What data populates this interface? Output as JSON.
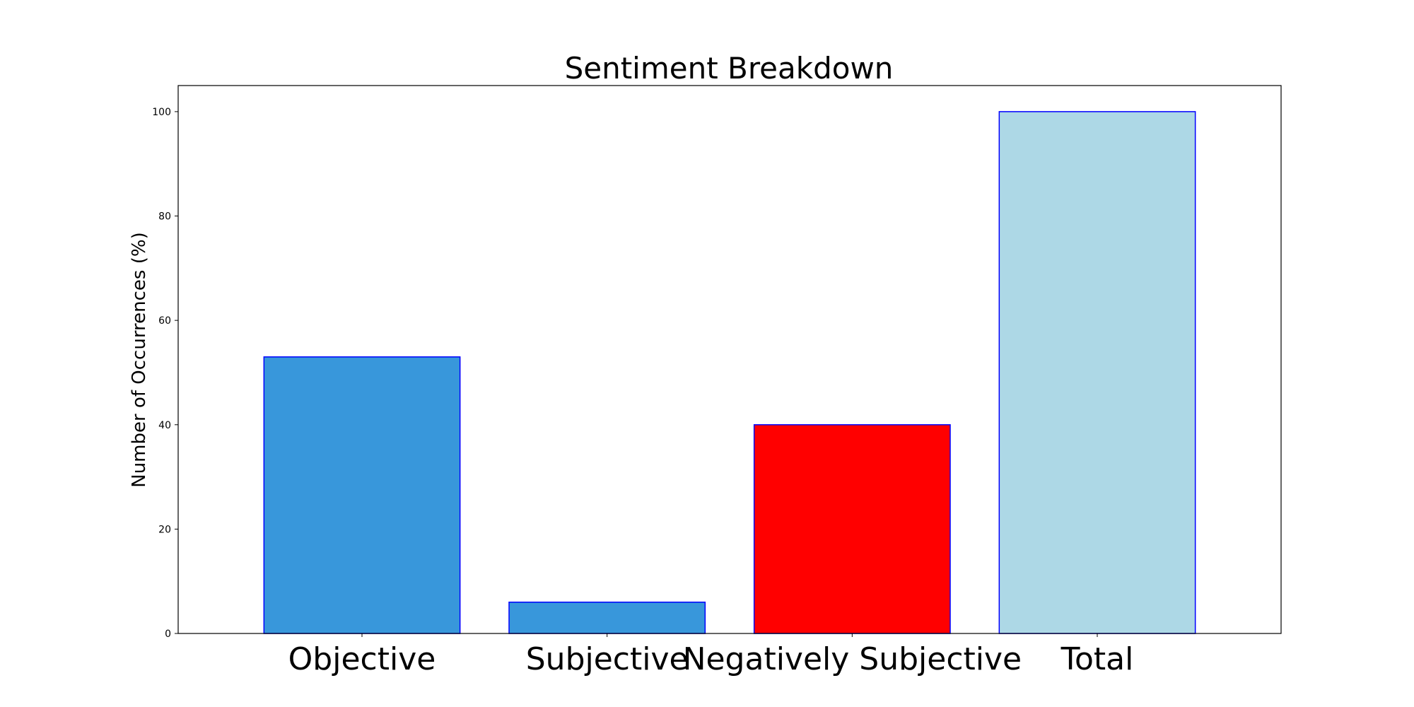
{
  "chart_data": {
    "type": "bar",
    "title": "Sentiment Breakdown",
    "xlabel": "",
    "ylabel": "Number of Occurrences (%)",
    "categories": [
      "Objective",
      "Subjective",
      "Negatively Subjective",
      "Total"
    ],
    "values": [
      53,
      6,
      40,
      100
    ],
    "bar_colors": [
      "#3897db",
      "#3897db",
      "#ff0000",
      "#add8e6"
    ],
    "bar_edge_color": "#0000ff",
    "ylim": [
      0,
      105
    ],
    "yticks": [
      0,
      20,
      40,
      60,
      80,
      100
    ],
    "grid": false,
    "legend": "none"
  }
}
